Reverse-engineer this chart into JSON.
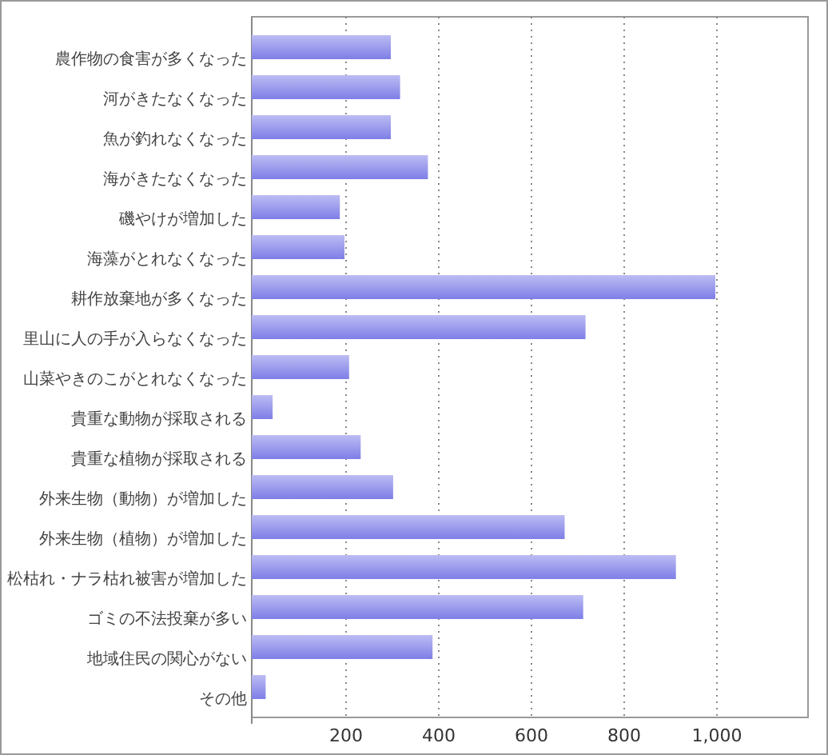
{
  "chart_data": {
    "type": "bar",
    "orientation": "horizontal",
    "categories": [
      "農作物の食害が多くなった",
      "河がきたなくなった",
      "魚が釣れなくなった",
      "海がきたなくなった",
      "磯やけが増加した",
      "海藻がとれなくなった",
      "耕作放棄地が多くなった",
      "里山に人の手が入らなくなった",
      "山菜やきのこがとれなくなった",
      "貴重な動物が採取される",
      "貴重な植物が採取される",
      "外来生物（動物）が増加した",
      "外来生物（植物）が増加した",
      "松枯れ・ナラ枯れ被害が増加した",
      "ゴミの不法投棄が多い",
      "地域住民の関心がない",
      "その他"
    ],
    "values": [
      300,
      320,
      300,
      380,
      190,
      200,
      1000,
      720,
      210,
      45,
      235,
      305,
      675,
      915,
      715,
      390,
      30
    ],
    "color": "#9898ec",
    "xlim": [
      0,
      1200
    ],
    "xticks": [
      200,
      400,
      600,
      800,
      {
        "value": 1000,
        "label": "1,000"
      }
    ],
    "grid": "x"
  }
}
